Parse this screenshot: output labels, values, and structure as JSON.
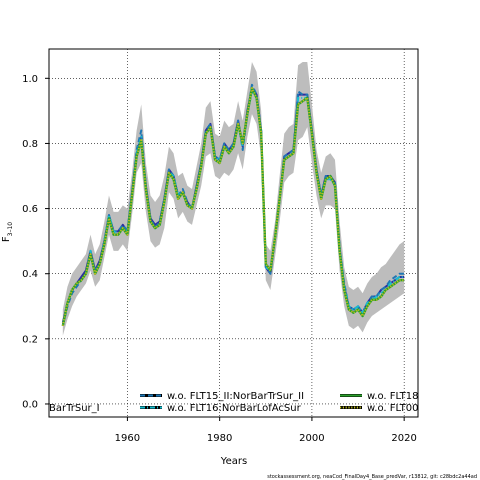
{
  "chart_data": {
    "type": "line",
    "xlabel": "Years",
    "ylabel": "F",
    "ylabel_sub": "3–10",
    "xlim": [
      1943,
      2023
    ],
    "ylim": [
      -0.04,
      1.09
    ],
    "xticks": [
      "1960",
      "1980",
      "2000",
      "2020"
    ],
    "xtick_values": [
      1960,
      1980,
      2000,
      2020
    ],
    "yticks": [
      "0.0",
      "0.2",
      "0.4",
      "0.6",
      "0.8",
      "1.0"
    ],
    "ytick_values": [
      0.0,
      0.2,
      0.4,
      0.6,
      0.8,
      1.0
    ],
    "grid": true,
    "legend_placement": "bottom",
    "band_color": "#bdbdbd",
    "x": [
      1946,
      1947,
      1948,
      1949,
      1950,
      1951,
      1952,
      1953,
      1954,
      1955,
      1956,
      1957,
      1958,
      1959,
      1960,
      1961,
      1962,
      1963,
      1964,
      1965,
      1966,
      1967,
      1968,
      1969,
      1970,
      1971,
      1972,
      1973,
      1974,
      1975,
      1976,
      1977,
      1978,
      1979,
      1980,
      1981,
      1982,
      1983,
      1984,
      1985,
      1986,
      1987,
      1988,
      1989,
      1990,
      1991,
      1992,
      1993,
      1994,
      1995,
      1996,
      1997,
      1998,
      1999,
      2000,
      2001,
      2002,
      2003,
      2004,
      2005,
      2006,
      2007,
      2008,
      2009,
      2010,
      2011,
      2012,
      2013,
      2014,
      2015,
      2016,
      2017,
      2018,
      2019,
      2020
    ],
    "band_upper": [
      0.29,
      0.36,
      0.4,
      0.42,
      0.44,
      0.46,
      0.52,
      0.46,
      0.49,
      0.56,
      0.64,
      0.59,
      0.59,
      0.61,
      0.6,
      0.71,
      0.84,
      0.92,
      0.74,
      0.64,
      0.62,
      0.64,
      0.7,
      0.79,
      0.77,
      0.7,
      0.71,
      0.67,
      0.66,
      0.73,
      0.8,
      0.91,
      0.93,
      0.83,
      0.82,
      0.87,
      0.85,
      0.86,
      0.93,
      0.87,
      0.96,
      1.05,
      1.02,
      0.9,
      0.49,
      0.47,
      0.56,
      0.7,
      0.83,
      0.85,
      0.86,
      1.04,
      1.05,
      1.05,
      0.92,
      0.78,
      0.71,
      0.76,
      0.77,
      0.75,
      0.56,
      0.42,
      0.36,
      0.35,
      0.36,
      0.34,
      0.37,
      0.39,
      0.4,
      0.42,
      0.43,
      0.45,
      0.47,
      0.49,
      0.5
    ],
    "band_lower": [
      0.21,
      0.26,
      0.3,
      0.33,
      0.35,
      0.37,
      0.41,
      0.36,
      0.38,
      0.45,
      0.52,
      0.47,
      0.47,
      0.49,
      0.47,
      0.58,
      0.71,
      0.74,
      0.59,
      0.5,
      0.48,
      0.49,
      0.54,
      0.65,
      0.63,
      0.57,
      0.59,
      0.56,
      0.55,
      0.61,
      0.67,
      0.76,
      0.77,
      0.7,
      0.69,
      0.71,
      0.7,
      0.72,
      0.77,
      0.72,
      0.82,
      0.89,
      0.86,
      0.76,
      0.38,
      0.35,
      0.45,
      0.56,
      0.68,
      0.7,
      0.71,
      0.81,
      0.82,
      0.85,
      0.74,
      0.64,
      0.57,
      0.61,
      0.61,
      0.6,
      0.41,
      0.3,
      0.24,
      0.23,
      0.24,
      0.22,
      0.25,
      0.27,
      0.28,
      0.29,
      0.3,
      0.31,
      0.32,
      0.33,
      0.34
    ],
    "series": [
      {
        "name": "w.o. FLT15_II:NorBarTrSur_II",
        "color": "#1f77b4",
        "style": "dashed",
        "values": [
          0.24,
          0.3,
          0.34,
          0.36,
          0.38,
          0.4,
          0.46,
          0.41,
          0.43,
          0.5,
          0.58,
          0.53,
          0.53,
          0.55,
          0.53,
          0.65,
          0.78,
          0.84,
          0.67,
          0.57,
          0.54,
          0.56,
          0.63,
          0.72,
          0.7,
          0.64,
          0.66,
          0.62,
          0.6,
          0.67,
          0.74,
          0.84,
          0.86,
          0.76,
          0.75,
          0.8,
          0.78,
          0.8,
          0.87,
          0.78,
          0.89,
          0.98,
          0.95,
          0.84,
          0.42,
          0.4,
          0.51,
          0.63,
          0.76,
          0.77,
          0.78,
          0.96,
          0.95,
          0.95,
          0.84,
          0.72,
          0.64,
          0.7,
          0.7,
          0.68,
          0.48,
          0.37,
          0.3,
          0.29,
          0.3,
          0.28,
          0.31,
          0.33,
          0.33,
          0.35,
          0.36,
          0.38,
          0.39,
          0.4,
          0.4
        ]
      },
      {
        "name": "w.o. FLT16:NorBarLofAcSur",
        "color": "#17becf",
        "style": "dashdot",
        "values": [
          0.24,
          0.31,
          0.35,
          0.37,
          0.38,
          0.4,
          0.47,
          0.4,
          0.43,
          0.5,
          0.58,
          0.53,
          0.52,
          0.54,
          0.53,
          0.64,
          0.77,
          0.82,
          0.66,
          0.56,
          0.54,
          0.55,
          0.62,
          0.71,
          0.7,
          0.64,
          0.65,
          0.61,
          0.6,
          0.66,
          0.73,
          0.83,
          0.85,
          0.76,
          0.75,
          0.79,
          0.77,
          0.79,
          0.86,
          0.79,
          0.89,
          0.96,
          0.94,
          0.83,
          0.42,
          0.41,
          0.51,
          0.63,
          0.75,
          0.76,
          0.77,
          0.94,
          0.94,
          0.94,
          0.83,
          0.71,
          0.64,
          0.69,
          0.69,
          0.67,
          0.48,
          0.36,
          0.3,
          0.29,
          0.3,
          0.28,
          0.31,
          0.32,
          0.33,
          0.34,
          0.35,
          0.37,
          0.38,
          0.39,
          0.39
        ]
      },
      {
        "name": "w.o. FLT18",
        "color": "#2ca02c",
        "style": "solid",
        "values": [
          0.24,
          0.31,
          0.35,
          0.37,
          0.38,
          0.4,
          0.46,
          0.4,
          0.43,
          0.49,
          0.57,
          0.52,
          0.52,
          0.54,
          0.52,
          0.64,
          0.76,
          0.81,
          0.66,
          0.56,
          0.54,
          0.55,
          0.62,
          0.71,
          0.69,
          0.63,
          0.65,
          0.61,
          0.6,
          0.66,
          0.73,
          0.83,
          0.85,
          0.75,
          0.74,
          0.79,
          0.77,
          0.79,
          0.86,
          0.8,
          0.89,
          0.97,
          0.94,
          0.83,
          0.43,
          0.41,
          0.51,
          0.63,
          0.75,
          0.76,
          0.77,
          0.92,
          0.93,
          0.94,
          0.83,
          0.71,
          0.63,
          0.69,
          0.7,
          0.67,
          0.47,
          0.35,
          0.29,
          0.28,
          0.29,
          0.27,
          0.3,
          0.32,
          0.32,
          0.33,
          0.35,
          0.36,
          0.37,
          0.38,
          0.38
        ]
      },
      {
        "name": "w.o. FLT00",
        "color": "#bcbd22",
        "style": "dotted",
        "values": [
          0.24,
          0.31,
          0.35,
          0.37,
          0.38,
          0.4,
          0.46,
          0.4,
          0.43,
          0.49,
          0.57,
          0.52,
          0.52,
          0.54,
          0.52,
          0.64,
          0.76,
          0.81,
          0.66,
          0.56,
          0.54,
          0.55,
          0.62,
          0.71,
          0.69,
          0.63,
          0.65,
          0.61,
          0.6,
          0.66,
          0.73,
          0.83,
          0.85,
          0.75,
          0.74,
          0.79,
          0.77,
          0.79,
          0.86,
          0.8,
          0.89,
          0.97,
          0.94,
          0.83,
          0.43,
          0.41,
          0.51,
          0.63,
          0.75,
          0.76,
          0.77,
          0.92,
          0.93,
          0.94,
          0.83,
          0.71,
          0.63,
          0.69,
          0.7,
          0.67,
          0.47,
          0.35,
          0.29,
          0.28,
          0.29,
          0.27,
          0.3,
          0.32,
          0.32,
          0.33,
          0.35,
          0.36,
          0.37,
          0.38,
          0.38
        ]
      },
      {
        "name": "w.o. ",
        "color": "#2e2ea0",
        "style": "solid",
        "values": [
          0.25,
          0.31,
          0.35,
          0.37,
          0.39,
          0.41,
          0.47,
          0.41,
          0.44,
          0.5,
          0.58,
          0.53,
          0.53,
          0.55,
          0.53,
          0.65,
          0.77,
          0.82,
          0.67,
          0.57,
          0.55,
          0.56,
          0.63,
          0.72,
          0.7,
          0.64,
          0.65,
          0.62,
          0.6,
          0.67,
          0.74,
          0.84,
          0.86,
          0.76,
          0.75,
          0.8,
          0.78,
          0.8,
          0.87,
          0.79,
          0.9,
          0.97,
          0.95,
          0.84,
          0.42,
          0.4,
          0.51,
          0.63,
          0.76,
          0.77,
          0.78,
          0.95,
          0.95,
          0.95,
          0.84,
          0.72,
          0.64,
          0.7,
          0.7,
          0.68,
          0.48,
          0.36,
          0.3,
          0.29,
          0.3,
          0.28,
          0.31,
          0.33,
          0.33,
          0.35,
          0.36,
          0.37,
          0.38,
          0.39,
          0.39
        ]
      }
    ],
    "legend": {
      "entries": [
        {
          "label": "BarTrSur_I",
          "series_index": -1
        },
        {
          "label": "w.o. FLT15_II:NorBarTrSur_II",
          "series_index": 0
        },
        {
          "label": "w.o. FLT16:NorBarLofAcSur",
          "series_index": 1
        },
        {
          "label": "w.o. FLT18",
          "series_index": 2
        },
        {
          "label": "w.o. FLT00",
          "series_index": 3
        }
      ]
    }
  },
  "footer": "stockassessment.org, neaCod_FinalDay4_Base_predVar, r13812, git: c28bdc2a44ad"
}
